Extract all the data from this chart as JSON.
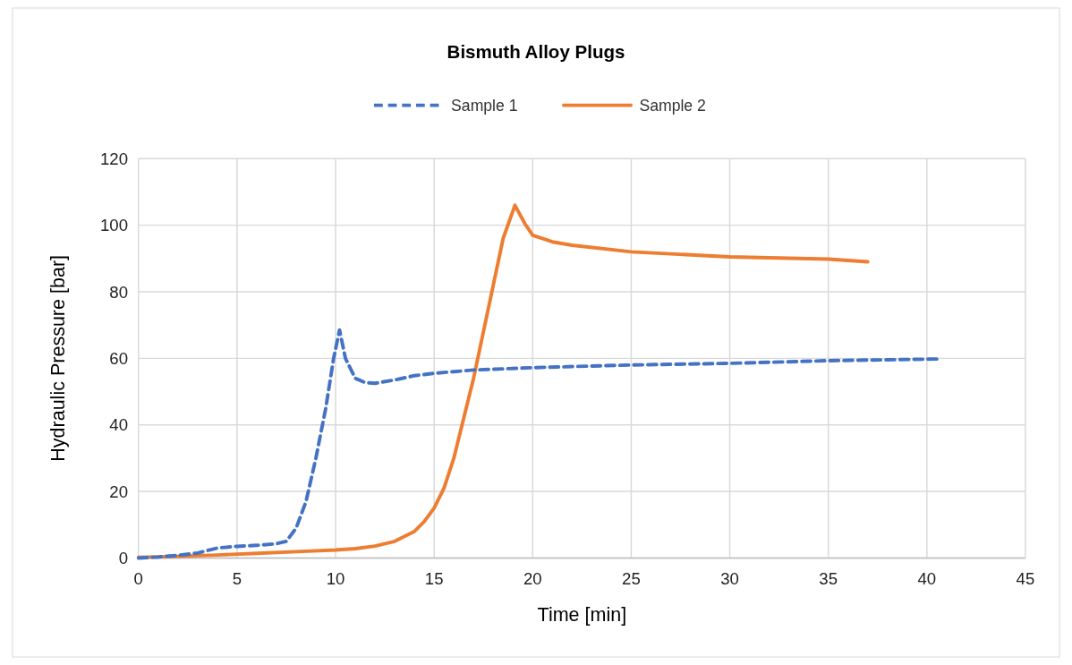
{
  "chart_data": {
    "type": "line",
    "title": "Bismuth Alloy Plugs",
    "xlabel": "Time [min]",
    "ylabel": "Hydraulic Pressure [bar]",
    "xlim": [
      0,
      45
    ],
    "xticks": [
      0,
      5,
      10,
      15,
      20,
      25,
      30,
      35,
      40,
      45
    ],
    "ylim": [
      0,
      120
    ],
    "yticks": [
      0,
      20,
      40,
      60,
      80,
      100,
      120
    ],
    "grid": true,
    "legend": "top",
    "marker": "none",
    "series": [
      {
        "name": "Sample 1",
        "color": "#4472c4",
        "line_style": "dashed",
        "x": [
          0,
          1,
          2,
          3,
          4,
          5,
          6,
          7,
          7.5,
          8,
          8.5,
          9,
          9.5,
          9.9,
          10.2,
          10.5,
          11,
          11.5,
          12,
          13,
          14,
          15,
          16,
          17,
          20,
          25,
          30,
          35,
          40.6
        ],
        "values": [
          0,
          0.3,
          0.8,
          1.5,
          3,
          3.5,
          3.8,
          4.3,
          5,
          9,
          17,
          30,
          45,
          60,
          68.5,
          60,
          54,
          52.7,
          52.5,
          53.5,
          54.8,
          55.5,
          56,
          56.5,
          57.2,
          58,
          58.5,
          59.3,
          59.8
        ]
      },
      {
        "name": "Sample 2",
        "color": "#ed7d31",
        "line_style": "solid",
        "x": [
          0,
          2,
          4,
          6,
          8,
          10,
          11,
          12,
          13,
          14,
          14.5,
          15,
          15.5,
          16,
          16.5,
          17,
          17.5,
          18,
          18.5,
          19.1,
          19.6,
          20,
          21,
          22,
          25,
          30,
          35,
          37
        ],
        "values": [
          0.2,
          0.5,
          0.9,
          1.4,
          1.9,
          2.4,
          2.8,
          3.6,
          5,
          8,
          11,
          15,
          21,
          30,
          42,
          54,
          68,
          82,
          96,
          106,
          100.5,
          97,
          95,
          94,
          92,
          90.5,
          89.8,
          89
        ]
      }
    ]
  }
}
